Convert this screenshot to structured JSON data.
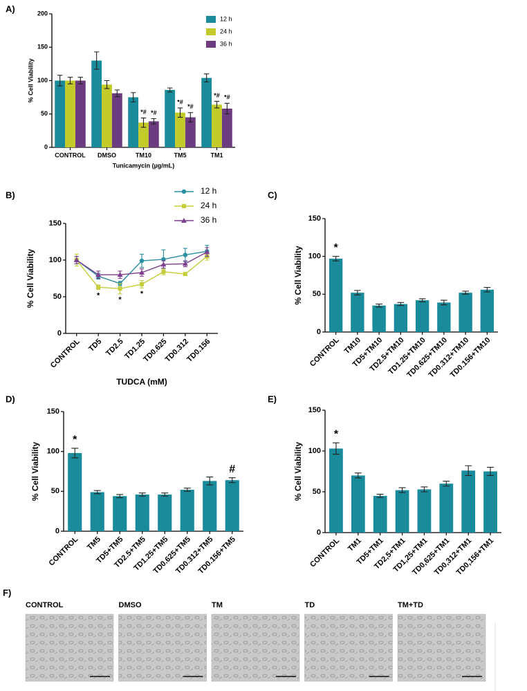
{
  "chart_data": [
    {
      "type": "bar",
      "label": "A)",
      "ylabel": "% Cell Viability",
      "xlabel": "Tunicamycin (µg/mL)",
      "categories": [
        "CONTROL",
        "DMSO",
        "TM10",
        "TM5",
        "TM1"
      ],
      "series": [
        {
          "name": "12 h",
          "color": "#1a8b9b",
          "values": [
            100,
            130,
            75,
            86,
            104
          ],
          "errors": [
            8,
            13,
            7,
            3,
            6
          ],
          "annotations": [
            null,
            null,
            null,
            null,
            null
          ]
        },
        {
          "name": "24 h",
          "color": "#c3cb2b",
          "values": [
            100,
            94,
            37,
            52,
            64
          ],
          "errors": [
            5,
            6,
            7,
            7,
            5
          ],
          "annotations": [
            null,
            null,
            "*#",
            "*#",
            "*#"
          ]
        },
        {
          "name": "36 h",
          "color": "#6d3b80",
          "values": [
            100,
            81,
            39,
            45,
            58
          ],
          "errors": [
            5,
            5,
            4,
            7,
            8
          ],
          "annotations": [
            null,
            null,
            "*#",
            "*#",
            "*#"
          ]
        }
      ],
      "ylim": [
        0,
        200
      ],
      "yticks": [
        0,
        50,
        100,
        150,
        200
      ]
    },
    {
      "type": "line",
      "label": "B)",
      "ylabel": "% Cell Viability",
      "xlabel": "TUDCA (mM)",
      "categories": [
        "CONTROL",
        "TD5",
        "TD2.5",
        "TD1.25",
        "TD0.625",
        "TD0.312",
        "TD0.156"
      ],
      "series": [
        {
          "name": "12 h",
          "color": "#2a8fa0",
          "marker": "circle",
          "values": [
            100,
            78,
            68,
            99,
            101,
            107,
            112
          ],
          "errors": [
            5,
            4,
            3,
            9,
            13,
            9,
            8
          ],
          "annotations": [
            null,
            null,
            null,
            null,
            null,
            null,
            null
          ]
        },
        {
          "name": "24 h",
          "color": "#c5cd3a",
          "marker": "square",
          "values": [
            100,
            63,
            61,
            67,
            84,
            81,
            105
          ],
          "errors": [
            8,
            3,
            7,
            5,
            4,
            2,
            5
          ],
          "annotations": [
            null,
            "*",
            "*",
            "*",
            null,
            null,
            null
          ]
        },
        {
          "name": "36 h",
          "color": "#7d3f8f",
          "marker": "triangle",
          "values": [
            100,
            80,
            80,
            83,
            94,
            95,
            111
          ],
          "errors": [
            5,
            5,
            5,
            5,
            5,
            4,
            6
          ],
          "annotations": [
            null,
            null,
            null,
            null,
            null,
            null,
            null
          ]
        }
      ],
      "ylim": [
        0,
        150
      ],
      "yticks": [
        0,
        50,
        100,
        150
      ]
    },
    {
      "type": "bar",
      "label": "C)",
      "ylabel": "% Cell Viability",
      "categories": [
        "CONTROL",
        "TM10",
        "TD5+TM10",
        "TD2.5+TM10",
        "TD1.25+TM10",
        "TD0.625+TM10",
        "TD0.312+TM10",
        "TD0.156+TM10"
      ],
      "series": [
        {
          "color": "#1a8b9b",
          "values": [
            97,
            52,
            35,
            37,
            42,
            39,
            52,
            56
          ],
          "errors": [
            3,
            3,
            2,
            2,
            2,
            3,
            2,
            3
          ],
          "annotations": [
            "*",
            null,
            null,
            null,
            null,
            null,
            null,
            null
          ]
        }
      ],
      "ylim": [
        0,
        150
      ],
      "yticks": [
        0,
        50,
        100,
        150
      ]
    },
    {
      "type": "bar",
      "label": "D)",
      "ylabel": "% Cell Viability",
      "categories": [
        "CONTROL",
        "TM5",
        "TD5+TM5",
        "TD2.5+TM5",
        "TD1.25+TM5",
        "TD0.625+TM5",
        "TD0.312+TM5",
        "TD0.156+TM5"
      ],
      "series": [
        {
          "color": "#1a8b9b",
          "values": [
            98,
            49,
            44,
            46,
            46,
            52,
            63,
            64
          ],
          "errors": [
            6,
            2,
            2,
            2,
            2,
            2,
            5,
            3
          ],
          "annotations": [
            "*",
            null,
            null,
            null,
            null,
            null,
            null,
            "#"
          ]
        }
      ],
      "ylim": [
        0,
        150
      ],
      "yticks": [
        0,
        50,
        100,
        150
      ]
    },
    {
      "type": "bar",
      "label": "E)",
      "ylabel": "% Cell Viability",
      "categories": [
        "CONTROL",
        "TM1",
        "TD5+TM1",
        "TD2,5+TM1",
        "TD1,25+TM1",
        "TD0,625+TM1",
        "TD0,312+TM1",
        "TD0,156+TM1"
      ],
      "series": [
        {
          "color": "#1a8b9b",
          "values": [
            103,
            70,
            45,
            52,
            53,
            60,
            76,
            75
          ],
          "errors": [
            7,
            3,
            2,
            3,
            3,
            3,
            6,
            5
          ],
          "annotations": [
            "*",
            null,
            null,
            null,
            null,
            null,
            null,
            null
          ]
        }
      ],
      "ylim": [
        0,
        150
      ],
      "yticks": [
        0,
        50,
        100,
        150
      ]
    }
  ],
  "images": {
    "label": "F)",
    "captions": [
      "CONTROL",
      "DMSO",
      "TM",
      "TD",
      "TM+TD"
    ]
  }
}
